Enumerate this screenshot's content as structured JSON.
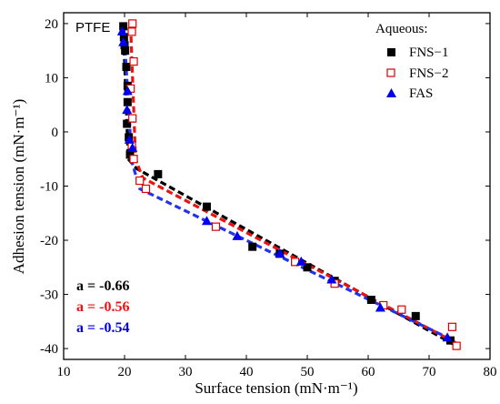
{
  "chart_data": {
    "type": "scatter",
    "panel_label": "PTFE",
    "xlabel": "Surface tension (mN·m⁻¹)",
    "ylabel": "Adhesion tension (mN·m⁻¹)",
    "xlim": [
      10,
      80
    ],
    "ylim": [
      -42,
      22
    ],
    "xticks": [
      10,
      20,
      30,
      40,
      50,
      60,
      70,
      80
    ],
    "yticks": [
      -40,
      -30,
      -20,
      -10,
      0,
      10,
      20
    ],
    "grid": false,
    "legend_title": "Aqueous:",
    "legend_position": "top-right",
    "series": [
      {
        "name": "FNS−1",
        "marker": "filled-square",
        "color": "#000000",
        "points": [
          [
            19.8,
            19.5
          ],
          [
            19.9,
            17.5
          ],
          [
            20.0,
            16.0
          ],
          [
            20.1,
            15.0
          ],
          [
            20.3,
            12.0
          ],
          [
            20.5,
            8.5
          ],
          [
            20.5,
            5.5
          ],
          [
            20.4,
            1.5
          ],
          [
            20.7,
            -1.0
          ],
          [
            20.9,
            -4.2
          ],
          [
            25.5,
            -7.8
          ],
          [
            33.5,
            -13.8
          ],
          [
            41.0,
            -21.2
          ],
          [
            45.5,
            -22.5
          ],
          [
            50.0,
            -25.0
          ],
          [
            54.5,
            -27.5
          ],
          [
            60.5,
            -31.0
          ],
          [
            67.8,
            -34.0
          ],
          [
            73.5,
            -38.5
          ]
        ]
      },
      {
        "name": "FNS−2",
        "marker": "open-square",
        "color": "#dd0000",
        "points": [
          [
            21.3,
            20.0
          ],
          [
            21.2,
            18.5
          ],
          [
            21.5,
            13.0
          ],
          [
            21.0,
            8.0
          ],
          [
            21.3,
            2.5
          ],
          [
            21.2,
            -2.5
          ],
          [
            21.5,
            -5.0
          ],
          [
            22.5,
            -9.0
          ],
          [
            23.5,
            -10.5
          ],
          [
            35.0,
            -17.5
          ],
          [
            48.0,
            -24.0
          ],
          [
            54.5,
            -28.0
          ],
          [
            62.5,
            -32.0
          ],
          [
            65.5,
            -32.8
          ],
          [
            73.8,
            -36.0
          ],
          [
            74.5,
            -39.5
          ]
        ]
      },
      {
        "name": "FAS",
        "marker": "filled-triangle",
        "color": "#0000ee",
        "points": [
          [
            19.6,
            18.5
          ],
          [
            19.8,
            16.5
          ],
          [
            20.5,
            7.5
          ],
          [
            20.4,
            4.0
          ],
          [
            20.8,
            -1.5
          ],
          [
            21.3,
            -3.0
          ],
          [
            33.5,
            -16.5
          ],
          [
            38.5,
            -19.3
          ],
          [
            45.5,
            -22.5
          ],
          [
            49.0,
            -24.0
          ],
          [
            54.0,
            -27.3
          ],
          [
            62.0,
            -32.5
          ],
          [
            73.0,
            -38.0
          ]
        ]
      }
    ],
    "fit_lines": [
      {
        "series": "FNS−1",
        "color": "#000000",
        "points": [
          [
            19.8,
            19.0
          ],
          [
            20.6,
            -5.0
          ],
          [
            22.0,
            -6.8
          ],
          [
            74.5,
            -39.5
          ]
        ]
      },
      {
        "series": "FNS−2",
        "color": "#ee1111",
        "points": [
          [
            21.0,
            19.5
          ],
          [
            21.8,
            -5.0
          ],
          [
            23.0,
            -8.5
          ],
          [
            74.5,
            -39.0
          ]
        ]
      },
      {
        "series": "FAS",
        "color": "#2233ee",
        "points": [
          [
            19.9,
            19.0
          ],
          [
            21.2,
            -5.5
          ],
          [
            22.5,
            -10.5
          ],
          [
            74.0,
            -38.5
          ]
        ]
      }
    ],
    "annotations": [
      {
        "text": "a = -0.66",
        "color": "#000000"
      },
      {
        "text": "a = -0.56",
        "color": "#ee1111"
      },
      {
        "text": "a = -0.54",
        "color": "#0000ee"
      }
    ]
  }
}
